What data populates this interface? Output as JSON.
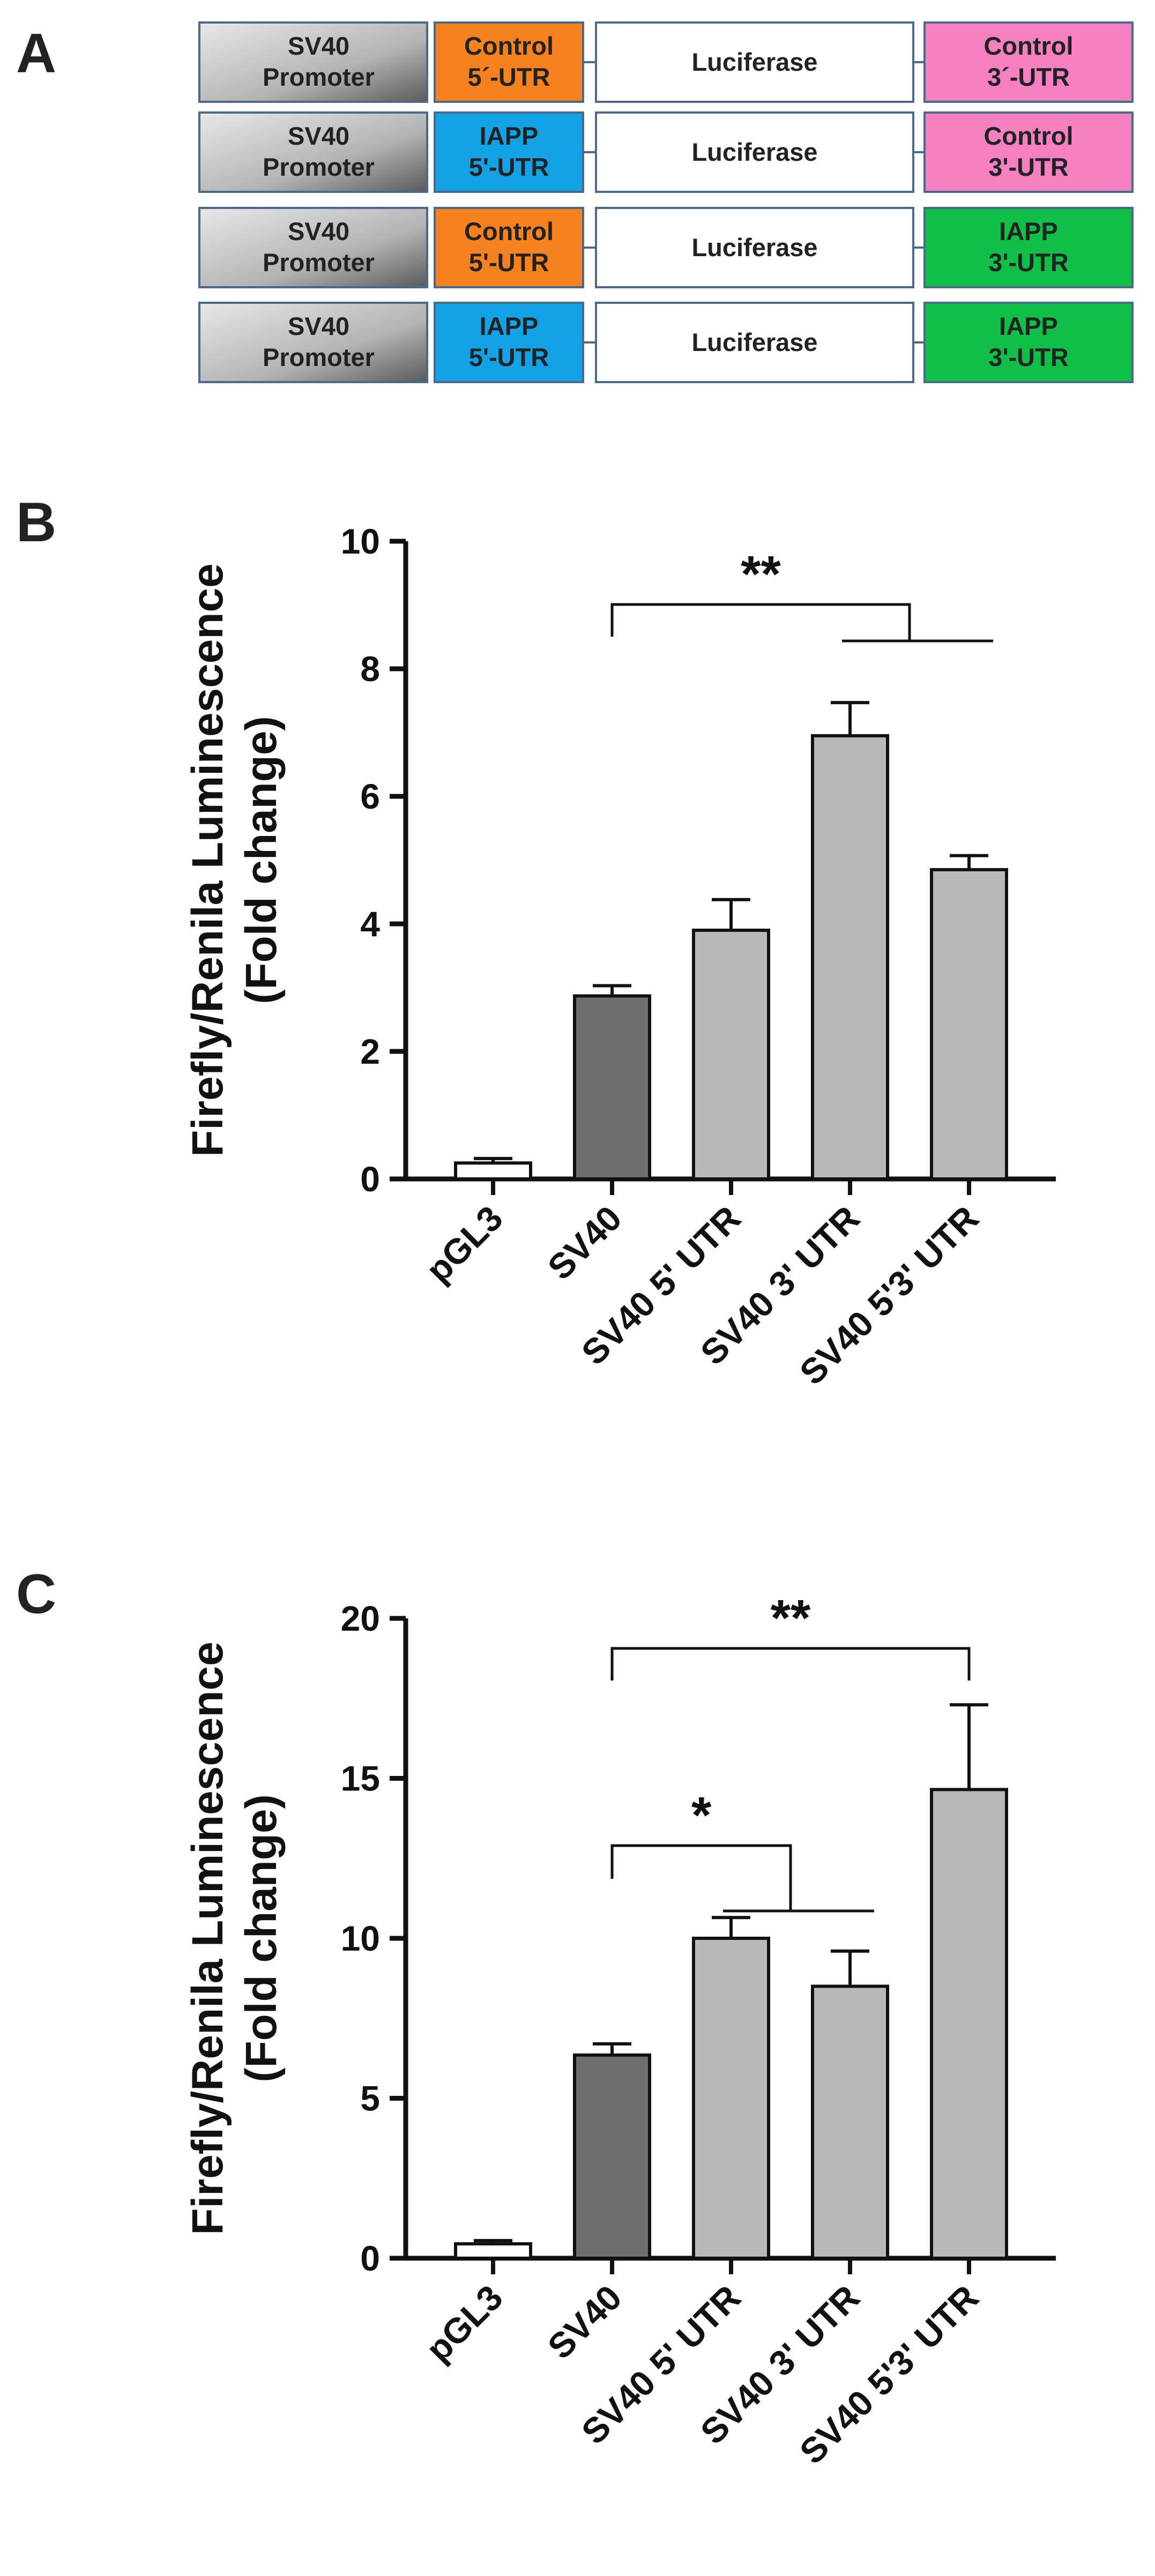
{
  "panel_a": {
    "label": "A",
    "constructs": [
      {
        "promoter": [
          "SV40",
          "Promoter"
        ],
        "utr5": [
          "Control",
          "5´-UTR"
        ],
        "gene": "Luciferase",
        "utr3": [
          "Control",
          "3´-UTR"
        ],
        "utr5_color": "#f5821f",
        "utr3_color": "#f47fc1"
      },
      {
        "promoter": [
          "SV40",
          "Promoter"
        ],
        "utr5": [
          "IAPP",
          "5'-UTR"
        ],
        "gene": "Luciferase",
        "utr3": [
          "Control",
          "3'-UTR"
        ],
        "utr5_color": "#14a2e6",
        "utr3_color": "#f47fc1"
      },
      {
        "promoter": [
          "SV40",
          "Promoter"
        ],
        "utr5": [
          "Control",
          "5'-UTR"
        ],
        "gene": "Luciferase",
        "utr3": [
          "IAPP",
          "3'-UTR"
        ],
        "utr5_color": "#f5821f",
        "utr3_color": "#0fc048"
      },
      {
        "promoter": [
          "SV40",
          "Promoter"
        ],
        "utr5": [
          "IAPP",
          "5'-UTR"
        ],
        "gene": "Luciferase",
        "utr3": [
          "IAPP",
          "3'-UTR"
        ],
        "utr5_color": "#14a2e6",
        "utr3_color": "#0fc048"
      }
    ]
  },
  "chart_data": [
    {
      "type": "bar",
      "panel": "B",
      "ylabel": [
        "Firefly/Renila Luminescence",
        "(Fold change)"
      ],
      "categories": [
        "pGL3",
        "SV40",
        "SV40 5' UTR",
        "SV40 3' UTR",
        "SV40 5'3' UTR"
      ],
      "values": [
        0.25,
        2.87,
        3.9,
        6.95,
        4.85
      ],
      "errors": [
        0.07,
        0.16,
        0.48,
        0.52,
        0.22
      ],
      "colors": [
        "#ffffff",
        "#6e6d72",
        "#b9b9bd",
        "#b9b9bd",
        "#b9b9bd"
      ],
      "ylim": [
        0,
        10
      ],
      "yticks": [
        "0",
        "2",
        "4",
        "6",
        "8",
        "10"
      ],
      "annotations": [
        {
          "text": "**",
          "from": 1,
          "to_group": [
            3,
            4
          ]
        }
      ]
    },
    {
      "type": "bar",
      "panel": "C",
      "ylabel": [
        "Firefly/Renila Luminescence",
        "(Fold change)"
      ],
      "categories": [
        "pGL3",
        "SV40",
        "SV40 5' UTR",
        "SV40 3' UTR",
        "SV40 5'3' UTR"
      ],
      "values": [
        0.45,
        6.35,
        10.0,
        8.5,
        14.65
      ],
      "errors": [
        0.1,
        0.35,
        0.65,
        1.1,
        2.65
      ],
      "colors": [
        "#ffffff",
        "#6e6d72",
        "#b9b9bd",
        "#b9b9bd",
        "#b9b9bd"
      ],
      "ylim": [
        0,
        20
      ],
      "yticks": [
        "0",
        "5",
        "10",
        "15",
        "20"
      ],
      "annotations": [
        {
          "text": "*",
          "from": 1,
          "to_group": [
            2,
            3
          ]
        },
        {
          "text": "**",
          "from": 1,
          "to": 4
        }
      ]
    }
  ]
}
